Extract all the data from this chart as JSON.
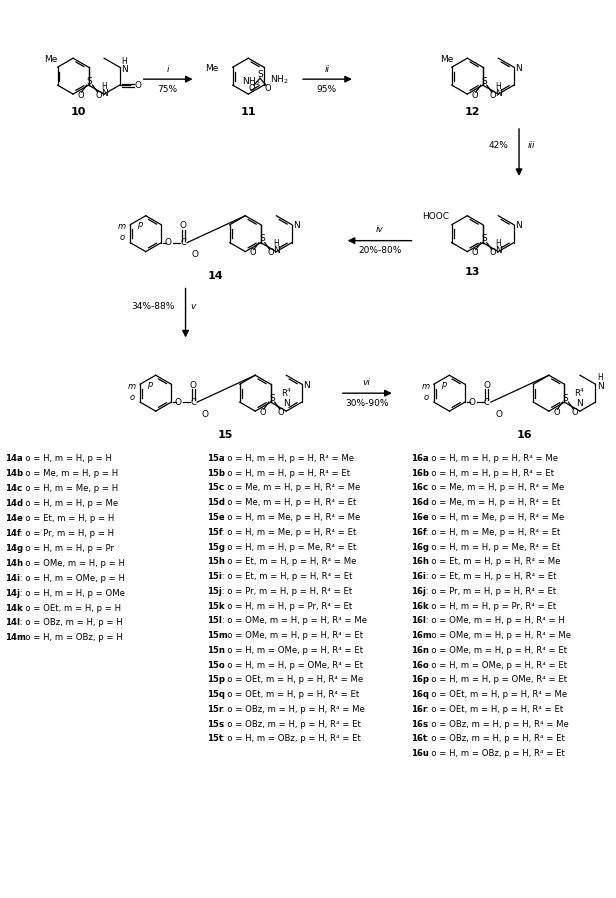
{
  "fig_width": 6.16,
  "fig_height": 8.98,
  "dpi": 100,
  "bg_color": "#ffffff",
  "c14_list": [
    [
      "14a",
      " : o = H, m = H, p = H"
    ],
    [
      "14b",
      " : o = Me, m = H, p = H"
    ],
    [
      "14c",
      " : o = H, m = Me, p = H"
    ],
    [
      "14d",
      " : o = H, m = H, p = Me"
    ],
    [
      "14e",
      " : o = Et, m = H, p = H"
    ],
    [
      "14f",
      " : o = Pr, m = H, p = H"
    ],
    [
      "14g",
      " : o = H, m = H, p = Pr"
    ],
    [
      "14h",
      " : o = OMe, m = H, p = H"
    ],
    [
      "14i",
      " : o = H, m = OMe, p = H"
    ],
    [
      "14j",
      " : o = H, m = H, p = OMe"
    ],
    [
      "14k",
      " : o = OEt, m = H, p = H"
    ],
    [
      "14l",
      " : o = OBz, m = H, p = H"
    ],
    [
      "14m",
      " : o = H, m = OBz, p = H"
    ]
  ],
  "c15_list": [
    [
      "15a",
      " : o = H, m = H, p = H, R⁴ = Me"
    ],
    [
      "15b",
      " : o = H, m = H, p = H, R⁴ = Et"
    ],
    [
      "15c",
      " : o = Me, m = H, p = H, R⁴ = Me"
    ],
    [
      "15d",
      " : o = Me, m = H, p = H, R⁴ = Et"
    ],
    [
      "15e",
      " : o = H, m = Me, p = H, R⁴ = Me"
    ],
    [
      "15f",
      " : o = H, m = Me, p = H, R⁴ = Et"
    ],
    [
      "15g",
      " : o = H, m = H, p = Me, R⁴ = Et"
    ],
    [
      "15h",
      " : o = Et, m = H, p = H, R⁴ = Me"
    ],
    [
      "15i",
      " : o = Et, m = H, p = H, R⁴ = Et"
    ],
    [
      "15j",
      " : o = Pr, m = H, p = H, R⁴ = Et"
    ],
    [
      "15k",
      " : o = H, m = H, p = Pr, R⁴ = Et"
    ],
    [
      "15l",
      " : o = OMe, m = H, p = H, R⁴ = Me"
    ],
    [
      "15m",
      " : o = OMe, m = H, p = H, R⁴ = Et"
    ],
    [
      "15n",
      " : o = H, m = OMe, p = H, R⁴ = Et"
    ],
    [
      "15o",
      " : o = H, m = H, p = OMe, R⁴ = Et"
    ],
    [
      "15p",
      " : o = OEt, m = H, p = H, R⁴ = Me"
    ],
    [
      "15q",
      " : o = OEt, m = H, p = H, R⁴ = Et"
    ],
    [
      "15r",
      " : o = OBz, m = H, p = H, R⁴ = Me"
    ],
    [
      "15s",
      " : o = OBz, m = H, p = H, R⁴ = Et"
    ],
    [
      "15t",
      " : o = H, m = OBz, p = H, R⁴ = Et"
    ]
  ],
  "c16_list": [
    [
      "16a",
      " : o = H, m = H, p = H, R⁴ = Me"
    ],
    [
      "16b",
      " : o = H, m = H, p = H, R⁴ = Et"
    ],
    [
      "16c",
      " : o = Me, m = H, p = H, R⁴ = Me"
    ],
    [
      "16d",
      " : o = Me, m = H, p = H, R⁴ = Et"
    ],
    [
      "16e",
      " : o = H, m = Me, p = H, R⁴ = Me"
    ],
    [
      "16f",
      " : o = H, m = Me, p = H, R⁴ = Et"
    ],
    [
      "16g",
      " : o = H, m = H, p = Me, R⁴ = Et"
    ],
    [
      "16h",
      " : o = Et, m = H, p = H, R⁴ = Me"
    ],
    [
      "16i",
      " : o = Et, m = H, p = H, R⁴ = Et"
    ],
    [
      "16j",
      " : o = Pr, m = H, p = H, R⁴ = Et"
    ],
    [
      "16k",
      " : o = H, m = H, p = Pr, R⁴ = Et"
    ],
    [
      "16l",
      " : o = OMe, m = H, p = H, R⁴ = H"
    ],
    [
      "16m",
      " : o = OMe, m = H, p = H, R⁴ = Me"
    ],
    [
      "16n",
      " : o = OMe, m = H, p = H, R⁴ = Et"
    ],
    [
      "16o",
      " : o = H, m = OMe, p = H, R⁴ = Et"
    ],
    [
      "16p",
      " : o = H, m = H, p = OMe, R⁴ = Et"
    ],
    [
      "16q",
      " : o = OEt, m = H, p = H, R⁴ = Me"
    ],
    [
      "16r",
      " : o = OEt, m = H, p = H, R⁴ = Et"
    ],
    [
      "16s",
      " : o = OBz, m = H, p = H, R⁴ = Me"
    ],
    [
      "16t",
      " : o = OBz, m = H, p = H, R⁴ = Et"
    ],
    [
      "16u",
      " : o = H, m = OBz, p = H, R⁴ = Et"
    ]
  ]
}
